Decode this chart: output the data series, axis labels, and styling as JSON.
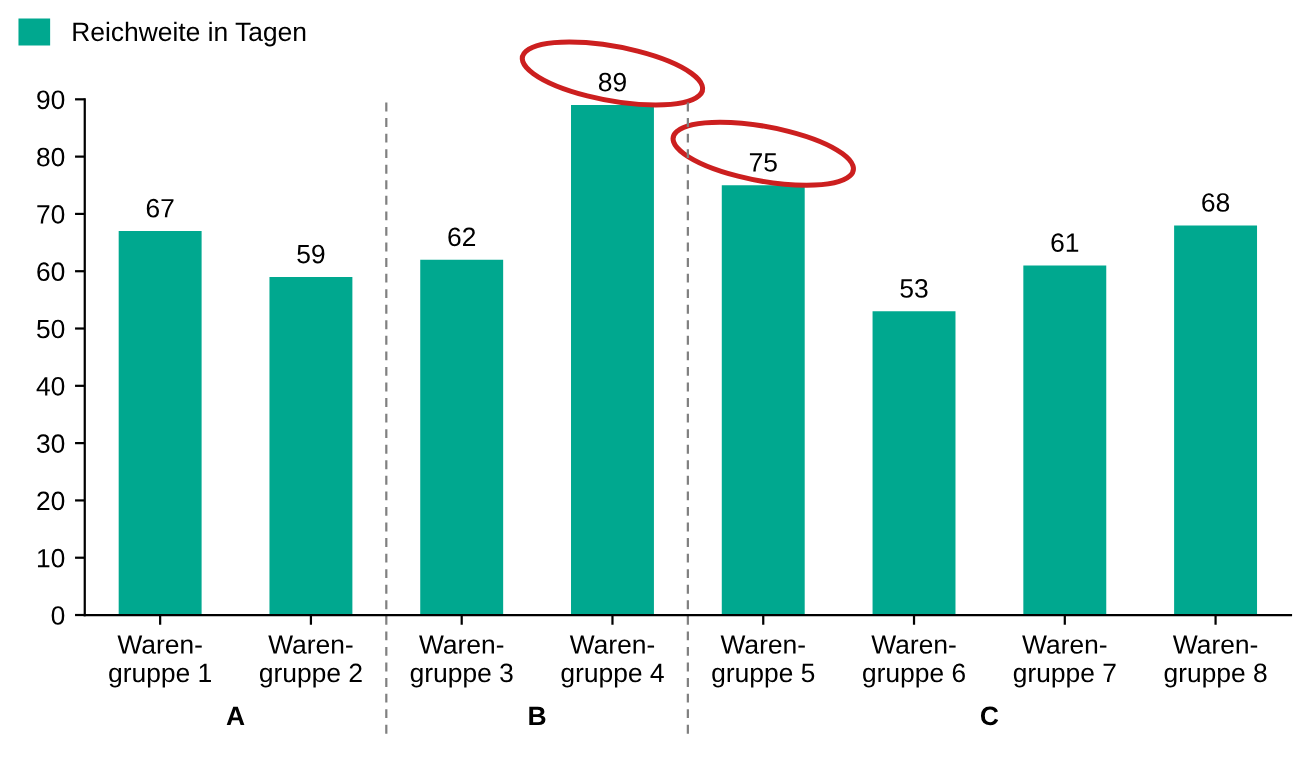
{
  "chart_data": {
    "type": "bar",
    "categories": [
      "Waren-\ngruppe 1",
      "Waren-\ngruppe 2",
      "Waren-\ngruppe 3",
      "Waren-\ngruppe 4",
      "Waren-\ngruppe 5",
      "Waren-\ngruppe 6",
      "Waren-\ngruppe 7",
      "Waren-\ngruppe 8"
    ],
    "series": [
      {
        "name": "Reichweite in Tagen",
        "color": "#00a88f",
        "values": [
          67,
          59,
          62,
          89,
          75,
          53,
          61,
          68
        ]
      }
    ],
    "ylim": [
      0,
      90
    ],
    "yticks": [
      0,
      10,
      20,
      30,
      40,
      50,
      60,
      70,
      80,
      90
    ],
    "annotations": [
      "A",
      "B",
      "C"
    ],
    "data_labels": true,
    "grid": false,
    "legend": "top left"
  }
}
